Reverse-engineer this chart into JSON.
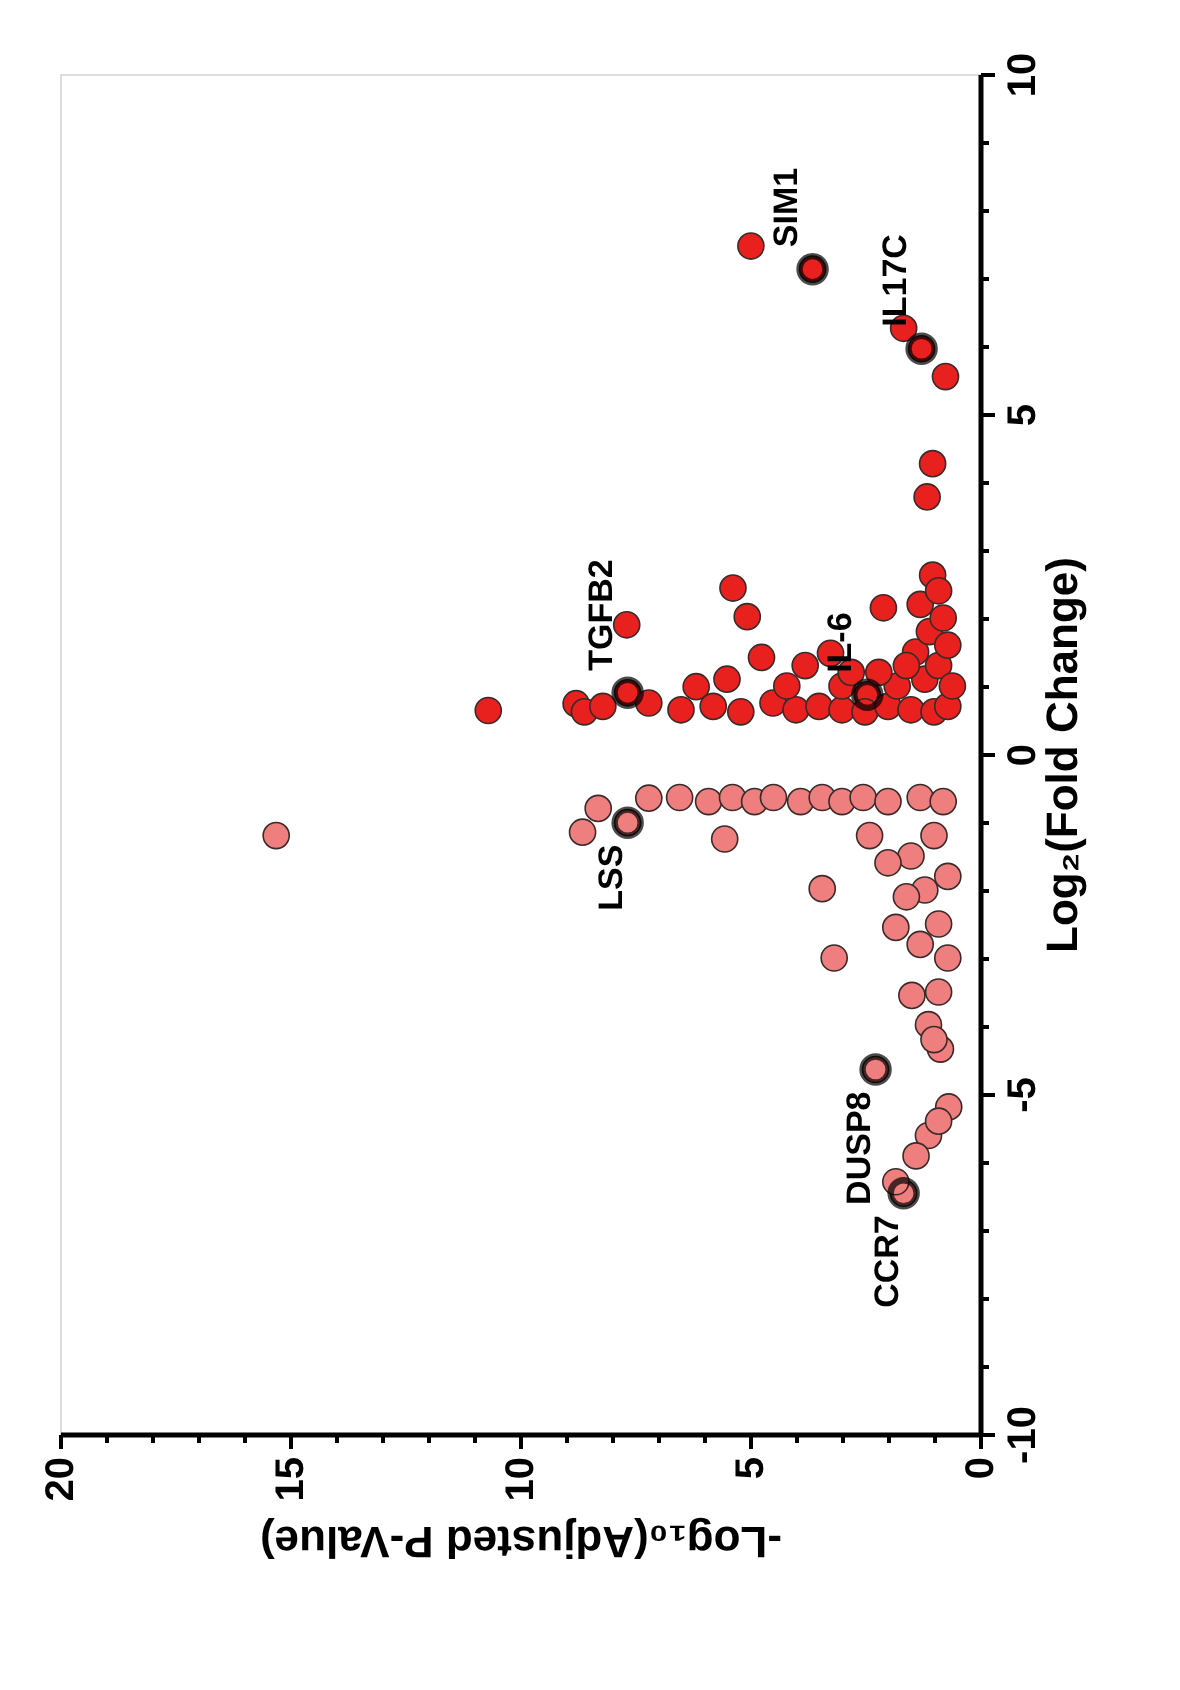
{
  "chart_data": {
    "type": "scatter",
    "xlabel": "-Log₁₀(Adjusted P-Value)",
    "ylabel": "Log₂(Fold Change)",
    "xlim": [
      20,
      0
    ],
    "ylim": [
      -10,
      10
    ],
    "xticks": [
      0,
      {
        "value": 1,
        "label": null
      },
      {
        "value": 2,
        "label": null
      },
      {
        "value": 3,
        "label": null
      },
      {
        "value": 4,
        "label": null
      },
      5,
      {
        "value": 6,
        "label": null
      },
      {
        "value": 7,
        "label": null
      },
      {
        "value": 8,
        "label": null
      },
      {
        "value": 9,
        "label": null
      },
      10,
      {
        "value": 11,
        "label": null
      },
      {
        "value": 12,
        "label": null
      },
      {
        "value": 13,
        "label": null
      },
      {
        "value": 14,
        "label": null
      },
      15,
      {
        "value": 16,
        "label": null
      },
      {
        "value": 17,
        "label": null
      },
      {
        "value": 18,
        "label": null
      },
      {
        "value": 19,
        "label": null
      },
      20
    ],
    "yticks": [
      -10,
      {
        "value": -9,
        "label": null
      },
      {
        "value": -8,
        "label": null
      },
      {
        "value": -7,
        "label": null
      },
      {
        "value": -6,
        "label": null
      },
      -5,
      {
        "value": -4,
        "label": null
      },
      {
        "value": -3,
        "label": null
      },
      {
        "value": -2,
        "label": null
      },
      {
        "value": -1,
        "label": null
      },
      0,
      {
        "value": 1,
        "label": null
      },
      {
        "value": 2,
        "label": null
      },
      {
        "value": 3,
        "label": null
      },
      {
        "value": 4,
        "label": null
      },
      5,
      {
        "value": 6,
        "label": null
      },
      {
        "value": 7,
        "label": null
      },
      {
        "value": 8,
        "label": null
      },
      {
        "value": 9,
        "label": null
      },
      10
    ],
    "grid": false,
    "legend": false,
    "marker": "circle",
    "series": [
      {
        "color": "#e8211e",
        "x": [
          3.64,
          4.98,
          1.27,
          1.66,
          0.75,
          1.03,
          1.15,
          1.03,
          5.37,
          5.06,
          4.75,
          7.68,
          7.66,
          2.1,
          3.25,
          2.45,
          6.17,
          10.69,
          8.78,
          8.6,
          8.2,
          7.2,
          6.5,
          5.8,
          5.2,
          4.5,
          4.0,
          3.5,
          3.0,
          2.5,
          2.0,
          1.5,
          1.0,
          0.7,
          5.5,
          4.2,
          3.8,
          3.0,
          2.8,
          1.8,
          1.2,
          0.9,
          1.4,
          1.1,
          0.8,
          1.3,
          0.9,
          0.7,
          1.6,
          0.6,
          2.2
        ],
        "values": [
          7.13,
          7.47,
          5.96,
          6.26,
          5.55,
          4.27,
          3.78,
          2.63,
          2.44,
          2.02,
          1.42,
          1.9,
          0.9,
          2.15,
          1.48,
          0.87,
          0.99,
          0.64,
          0.74,
          0.62,
          0.7,
          0.75,
          0.65,
          0.7,
          0.62,
          0.75,
          0.65,
          0.7,
          0.65,
          0.62,
          0.7,
          0.65,
          0.62,
          0.7,
          1.1,
          1.0,
          1.3,
          1.0,
          1.2,
          1.0,
          1.1,
          1.3,
          1.5,
          1.8,
          2.0,
          2.2,
          2.4,
          1.6,
          1.3,
          1.0,
          1.2
        ]
      },
      {
        "color": "#ef7f7f",
        "x": [
          15.3,
          8.64,
          7.66,
          8.3,
          7.2,
          6.53,
          5.9,
          5.38,
          4.9,
          4.49,
          3.9,
          3.43,
          3.0,
          2.54,
          2.0,
          1.3,
          0.8,
          5.55,
          3.43,
          3.17,
          2.4,
          1.83,
          1.48,
          1.12,
          0.86,
          2.27,
          0.68,
          1.12,
          1.39,
          1.66,
          1.83,
          0.9,
          1.5,
          1.2,
          0.9,
          0.7,
          1.0,
          0.7,
          1.6,
          1.3,
          0.9,
          2.0,
          1.0
        ],
        "values": [
          -1.2,
          -1.15,
          -1.01,
          -0.8,
          -0.65,
          -0.64,
          -0.7,
          -0.64,
          -0.7,
          -0.64,
          -0.7,
          -0.64,
          -0.7,
          -0.64,
          -0.7,
          -0.64,
          -0.7,
          -1.25,
          -1.98,
          -3.0,
          -1.2,
          -2.55,
          -3.55,
          -3.98,
          -4.34,
          -4.64,
          -5.19,
          -5.61,
          -5.91,
          -6.46,
          -6.29,
          -5.4,
          -1.5,
          -2.0,
          -2.5,
          -3.0,
          -1.2,
          -1.8,
          -2.1,
          -2.8,
          -3.5,
          -1.6,
          -4.2
        ]
      }
    ],
    "annotations": [
      {
        "text": "SIM1",
        "x": 3.64,
        "y": 7.13
      },
      {
        "text": "IL17C",
        "x": 1.27,
        "y": 5.96
      },
      {
        "text": "TGFB2",
        "x": 7.66,
        "y": 0.9
      },
      {
        "text": "IL-6",
        "x": 2.45,
        "y": 0.87
      },
      {
        "text": "LSS",
        "x": 7.66,
        "y": -1.01
      },
      {
        "text": "DUSP8",
        "x": 2.27,
        "y": -4.64
      },
      {
        "text": "CCR7",
        "x": 1.66,
        "y": -6.46
      }
    ]
  }
}
